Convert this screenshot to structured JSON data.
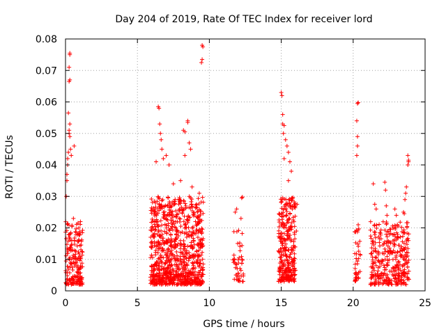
{
  "chart_data": {
    "type": "scatter",
    "title": "Day 204 of 2019, Rate Of TEC Index for receiver lord",
    "xlabel": "GPS time / hours",
    "ylabel": "ROTI / TECUs",
    "xlim": [
      0,
      25
    ],
    "ylim": [
      0,
      0.08
    ],
    "x_ticks": [
      "0",
      "5",
      "10",
      "15",
      "20",
      "25"
    ],
    "y_ticks": [
      "0",
      "0.01",
      "0.02",
      "0.03",
      "0.04",
      "0.05",
      "0.06",
      "0.07",
      "0.08"
    ],
    "grid": true,
    "marker": "+",
    "color": "#ff0000",
    "clusters": [
      {
        "x": [
          0.0,
          1.2
        ],
        "y": [
          0.002,
          0.022
        ],
        "count": 200
      },
      {
        "x": [
          5.9,
          9.6
        ],
        "y": [
          0.002,
          0.03
        ],
        "count": 900
      },
      {
        "x": [
          11.6,
          12.4
        ],
        "y": [
          0.003,
          0.02
        ],
        "count": 45
      },
      {
        "x": [
          14.8,
          16.0
        ],
        "y": [
          0.003,
          0.03
        ],
        "count": 300
      },
      {
        "x": [
          20.1,
          20.5
        ],
        "y": [
          0.003,
          0.02
        ],
        "count": 40
      },
      {
        "x": [
          21.2,
          23.9
        ],
        "y": [
          0.002,
          0.022
        ],
        "count": 350
      }
    ],
    "points": [
      [
        0.1,
        0.037
      ],
      [
        0.15,
        0.04
      ],
      [
        0.2,
        0.044
      ],
      [
        0.25,
        0.05
      ],
      [
        0.25,
        0.051
      ],
      [
        0.3,
        0.0755
      ],
      [
        0.3,
        0.075
      ],
      [
        0.3,
        0.067
      ],
      [
        0.25,
        0.0665
      ],
      [
        0.25,
        0.071
      ],
      [
        0.2,
        0.0565
      ],
      [
        0.3,
        0.049
      ],
      [
        0.35,
        0.045
      ],
      [
        0.4,
        0.043
      ],
      [
        0.15,
        0.042
      ],
      [
        0.1,
        0.035
      ],
      [
        0.05,
        0.03
      ],
      [
        0.3,
        0.053
      ],
      [
        0.6,
        0.046
      ],
      [
        0.55,
        0.023
      ],
      [
        6.5,
        0.058
      ],
      [
        6.45,
        0.0585
      ],
      [
        6.55,
        0.053
      ],
      [
        6.6,
        0.05
      ],
      [
        6.65,
        0.048
      ],
      [
        6.7,
        0.045
      ],
      [
        6.8,
        0.042
      ],
      [
        7.0,
        0.043
      ],
      [
        7.2,
        0.04
      ],
      [
        6.3,
        0.041
      ],
      [
        8.2,
        0.051
      ],
      [
        8.3,
        0.0505
      ],
      [
        8.5,
        0.054
      ],
      [
        8.5,
        0.0535
      ],
      [
        8.6,
        0.047
      ],
      [
        8.7,
        0.045
      ],
      [
        8.3,
        0.043
      ],
      [
        8.0,
        0.035
      ],
      [
        7.5,
        0.034
      ],
      [
        8.8,
        0.033
      ],
      [
        9.5,
        0.078
      ],
      [
        9.55,
        0.0775
      ],
      [
        9.5,
        0.0735
      ],
      [
        9.45,
        0.0725
      ],
      [
        9.3,
        0.031
      ],
      [
        9.4,
        0.0145
      ],
      [
        9.5,
        0.015
      ],
      [
        11.8,
        0.025
      ],
      [
        11.9,
        0.026
      ],
      [
        12.3,
        0.0298
      ],
      [
        12.25,
        0.0295
      ],
      [
        12.2,
        0.023
      ],
      [
        12.2,
        0.0065
      ],
      [
        12.3,
        0.003
      ],
      [
        15.0,
        0.063
      ],
      [
        15.05,
        0.062
      ],
      [
        15.1,
        0.056
      ],
      [
        15.1,
        0.053
      ],
      [
        15.2,
        0.0525
      ],
      [
        15.15,
        0.05
      ],
      [
        15.3,
        0.048
      ],
      [
        15.4,
        0.046
      ],
      [
        15.5,
        0.044
      ],
      [
        15.2,
        0.042
      ],
      [
        15.6,
        0.041
      ],
      [
        15.7,
        0.038
      ],
      [
        15.5,
        0.035
      ],
      [
        15.9,
        0.027
      ],
      [
        16.1,
        0.0275
      ],
      [
        16.05,
        0.019
      ],
      [
        20.3,
        0.0595
      ],
      [
        20.35,
        0.0598
      ],
      [
        20.25,
        0.054
      ],
      [
        20.3,
        0.049
      ],
      [
        20.3,
        0.046
      ],
      [
        20.25,
        0.043
      ],
      [
        20.35,
        0.021
      ],
      [
        21.4,
        0.034
      ],
      [
        21.5,
        0.0275
      ],
      [
        21.6,
        0.026
      ],
      [
        22.2,
        0.0345
      ],
      [
        22.25,
        0.032
      ],
      [
        22.3,
        0.027
      ],
      [
        22.35,
        0.024
      ],
      [
        22.6,
        0.0195
      ],
      [
        22.9,
        0.026
      ],
      [
        23.0,
        0.024
      ],
      [
        23.6,
        0.029
      ],
      [
        23.65,
        0.031
      ],
      [
        23.7,
        0.033
      ],
      [
        23.8,
        0.043
      ],
      [
        23.85,
        0.0415
      ],
      [
        23.8,
        0.04
      ],
      [
        23.85,
        0.041
      ],
      [
        23.5,
        0.025
      ],
      [
        23.55,
        0.0245
      ]
    ]
  }
}
